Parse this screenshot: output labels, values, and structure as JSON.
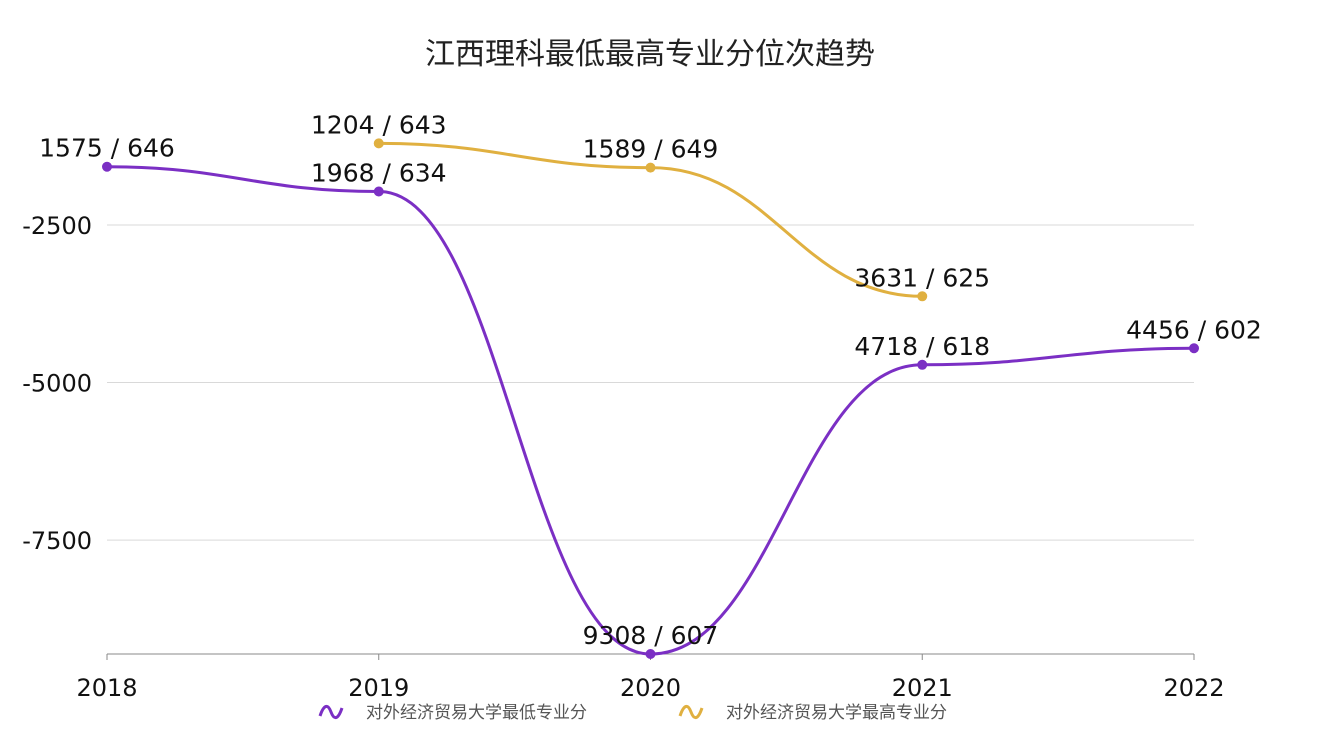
{
  "chart_data": {
    "type": "line",
    "title": "江西理科最低最高专业分位次趋势",
    "categories": [
      "2018",
      "2019",
      "2020",
      "2021",
      "2022"
    ],
    "yticks": [
      -2500,
      -5000,
      -7500
    ],
    "ylim": [
      -9308,
      0
    ],
    "grid": true,
    "smooth": true,
    "legend_position": "bottom",
    "series": [
      {
        "name": "对外经济贸易大学最低专业分",
        "color": "#7b2fc4",
        "values": [
          -1575,
          -1968,
          -9308,
          -4718,
          -4456
        ],
        "labels": [
          "1575 / 646",
          "1968 / 634",
          "9308 / 607",
          "4718 / 618",
          "4456 / 602"
        ]
      },
      {
        "name": "对外经济贸易大学最高专业分",
        "color": "#e0b040",
        "values": [
          null,
          -1204,
          -1589,
          -3631,
          null
        ],
        "labels": [
          null,
          "1204 / 643",
          "1589 / 649",
          "3631 / 625",
          null
        ]
      }
    ]
  }
}
